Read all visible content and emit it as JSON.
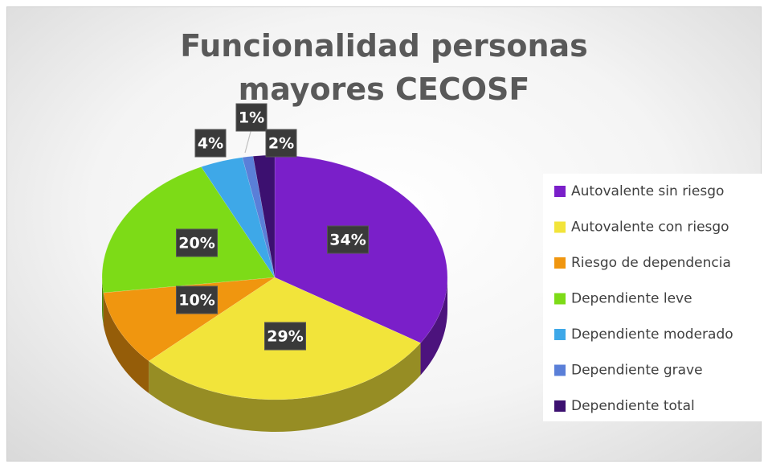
{
  "chart_data": {
    "type": "pie",
    "title": "Funcionalidad personas mayores CECOSF",
    "categories": [
      "Autovalente sin riesgo",
      "Autovalente con riesgo",
      "Riesgo de dependencia",
      "Dependiente leve",
      "Dependiente moderado",
      "Dependiente grave",
      "Dependiente total"
    ],
    "values": [
      34,
      29,
      10,
      20,
      4,
      1,
      2
    ],
    "value_labels": [
      "34%",
      "29%",
      "10%",
      "20%",
      "4%",
      "1%",
      "2%"
    ],
    "colors": [
      "#7a1fc9",
      "#f2e43a",
      "#f0960f",
      "#7ddb17",
      "#3ea8e8",
      "#5a7fd8",
      "#3c1070"
    ],
    "legend": "right"
  }
}
